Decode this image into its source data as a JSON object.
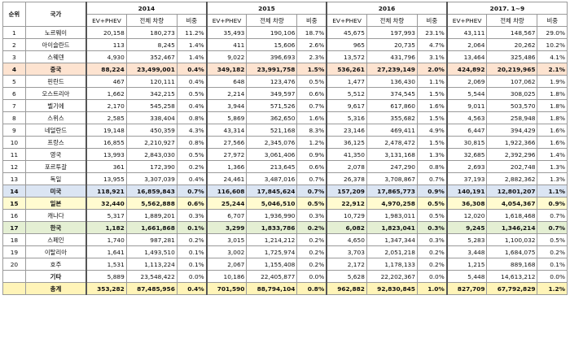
{
  "headers": {
    "rank": "순위",
    "country": "국가",
    "years": [
      "2014",
      "2015",
      "2016",
      "2017. 1~9"
    ],
    "sub": [
      "EV+PHEV",
      "전체 차량",
      "비중"
    ]
  },
  "rows": [
    {
      "rank": "1",
      "country": "노르웨이",
      "hl": "",
      "vals": [
        "20,158",
        "180,273",
        "11.2%",
        "35,493",
        "190,106",
        "18.7%",
        "45,675",
        "197,993",
        "23.1%",
        "43,111",
        "148,567",
        "29.0%"
      ]
    },
    {
      "rank": "2",
      "country": "아이슬란드",
      "hl": "",
      "vals": [
        "113",
        "8,245",
        "1.4%",
        "411",
        "15,606",
        "2.6%",
        "965",
        "20,735",
        "4.7%",
        "2,064",
        "20,262",
        "10.2%"
      ]
    },
    {
      "rank": "3",
      "country": "스웨덴",
      "hl": "",
      "vals": [
        "4,930",
        "352,467",
        "1.4%",
        "9,022",
        "396,693",
        "2.3%",
        "13,572",
        "431,796",
        "3.1%",
        "13,464",
        "325,486",
        "4.1%"
      ]
    },
    {
      "rank": "4",
      "country": "중국",
      "hl": "orange",
      "vals": [
        "88,224",
        "23,499,001",
        "0.4%",
        "349,182",
        "23,991,758",
        "1.5%",
        "536,261",
        "27,239,149",
        "2.0%",
        "424,892",
        "20,219,965",
        "2.1%"
      ]
    },
    {
      "rank": "5",
      "country": "핀란드",
      "hl": "",
      "vals": [
        "467",
        "120,111",
        "0.4%",
        "648",
        "123,476",
        "0.5%",
        "1,477",
        "136,430",
        "1.1%",
        "2,069",
        "107,062",
        "1.9%"
      ]
    },
    {
      "rank": "6",
      "country": "오스트리아",
      "hl": "",
      "vals": [
        "1,662",
        "342,215",
        "0.5%",
        "2,214",
        "349,597",
        "0.6%",
        "5,512",
        "374,545",
        "1.5%",
        "5,544",
        "308,025",
        "1.8%"
      ]
    },
    {
      "rank": "7",
      "country": "벨기에",
      "hl": "",
      "vals": [
        "2,170",
        "545,258",
        "0.4%",
        "3,944",
        "571,526",
        "0.7%",
        "9,617",
        "617,860",
        "1.6%",
        "9,011",
        "503,570",
        "1.8%"
      ]
    },
    {
      "rank": "8",
      "country": "스위스",
      "hl": "",
      "vals": [
        "2,585",
        "338,404",
        "0.8%",
        "5,869",
        "362,650",
        "1.6%",
        "5,316",
        "355,682",
        "1.5%",
        "4,563",
        "258,948",
        "1.8%"
      ]
    },
    {
      "rank": "9",
      "country": "네덜란드",
      "hl": "",
      "vals": [
        "19,148",
        "450,359",
        "4.3%",
        "43,314",
        "521,168",
        "8.3%",
        "23,146",
        "469,411",
        "4.9%",
        "6,447",
        "394,429",
        "1.6%"
      ]
    },
    {
      "rank": "10",
      "country": "프랑스",
      "hl": "",
      "vals": [
        "16,855",
        "2,210,927",
        "0.8%",
        "27,566",
        "2,345,076",
        "1.2%",
        "36,125",
        "2,478,472",
        "1.5%",
        "30,815",
        "1,922,366",
        "1.6%"
      ]
    },
    {
      "rank": "11",
      "country": "영국",
      "hl": "",
      "vals": [
        "13,993",
        "2,843,030",
        "0.5%",
        "27,972",
        "3,061,406",
        "0.9%",
        "41,350",
        "3,131,168",
        "1.3%",
        "32,685",
        "2,392,296",
        "1.4%"
      ]
    },
    {
      "rank": "12",
      "country": "포르투갈",
      "hl": "",
      "vals": [
        "361",
        "172,390",
        "0.2%",
        "1,366",
        "213,645",
        "0.6%",
        "2,078",
        "247,290",
        "0.8%",
        "2,693",
        "202,748",
        "1.3%"
      ]
    },
    {
      "rank": "13",
      "country": "독일",
      "hl": "",
      "vals": [
        "13,955",
        "3,307,039",
        "0.4%",
        "24,461",
        "3,487,016",
        "0.7%",
        "26,378",
        "3,708,867",
        "0.7%",
        "37,193",
        "2,882,362",
        "1.3%"
      ]
    },
    {
      "rank": "14",
      "country": "미국",
      "hl": "blue",
      "vals": [
        "118,921",
        "16,859,843",
        "0.7%",
        "116,608",
        "17,845,624",
        "0.7%",
        "157,209",
        "17,865,773",
        "0.9%",
        "140,191",
        "12,801,207",
        "1.1%"
      ]
    },
    {
      "rank": "15",
      "country": "일본",
      "hl": "yellow",
      "vals": [
        "32,440",
        "5,562,888",
        "0.6%",
        "25,244",
        "5,046,510",
        "0.5%",
        "22,912",
        "4,970,258",
        "0.5%",
        "36,308",
        "4,054,367",
        "0.9%"
      ]
    },
    {
      "rank": "16",
      "country": "캐나다",
      "hl": "",
      "vals": [
        "5,317",
        "1,889,201",
        "0.3%",
        "6,707",
        "1,936,990",
        "0.3%",
        "10,729",
        "1,983,011",
        "0.5%",
        "12,020",
        "1,618,468",
        "0.7%"
      ]
    },
    {
      "rank": "17",
      "country": "한국",
      "hl": "green",
      "vals": [
        "1,182",
        "1,661,868",
        "0.1%",
        "3,299",
        "1,833,786",
        "0.2%",
        "6,082",
        "1,823,041",
        "0.3%",
        "9,245",
        "1,346,214",
        "0.7%"
      ]
    },
    {
      "rank": "18",
      "country": "스페인",
      "hl": "",
      "vals": [
        "1,740",
        "987,281",
        "0.2%",
        "3,015",
        "1,214,212",
        "0.2%",
        "4,650",
        "1,347,344",
        "0.3%",
        "5,283",
        "1,100,032",
        "0.5%"
      ]
    },
    {
      "rank": "19",
      "country": "이탈리아",
      "hl": "",
      "vals": [
        "1,641",
        "1,493,510",
        "0.1%",
        "3,002",
        "1,725,974",
        "0.2%",
        "3,703",
        "2,051,218",
        "0.2%",
        "3,448",
        "1,684,075",
        "0.2%"
      ]
    },
    {
      "rank": "20",
      "country": "호주",
      "hl": "",
      "vals": [
        "1,531",
        "1,113,224",
        "0.1%",
        "2,067",
        "1,155,408",
        "0.2%",
        "2,172",
        "1,178,133",
        "0.2%",
        "1,215",
        "889,168",
        "0.1%"
      ]
    },
    {
      "rank": "",
      "country": "기타",
      "hl": "other",
      "vals": [
        "5,889",
        "23,548,422",
        "0.0%",
        "10,186",
        "22,405,877",
        "0.0%",
        "5,628",
        "22,202,367",
        "0.0%",
        "5,448",
        "14,613,212",
        "0.0%"
      ]
    },
    {
      "rank": "",
      "country": "총계",
      "hl": "total",
      "vals": [
        "353,282",
        "87,485,956",
        "0.4%",
        "701,590",
        "88,794,104",
        "0.8%",
        "962,882",
        "92,830,845",
        "1.0%",
        "827,709",
        "67,792,829",
        "1.2%"
      ]
    }
  ]
}
